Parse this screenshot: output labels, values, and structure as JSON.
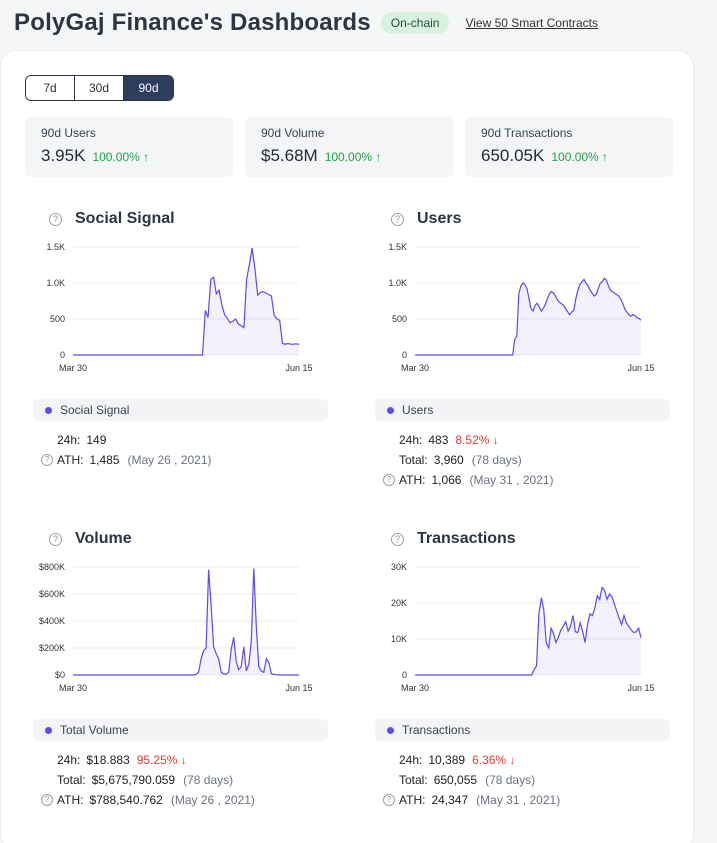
{
  "header": {
    "title": "PolyGaj Finance's Dashboards",
    "badge": "On-chain",
    "link": "View 50 Smart Contracts"
  },
  "tabs": [
    {
      "label": "7d",
      "active": false
    },
    {
      "label": "30d",
      "active": false
    },
    {
      "label": "90d",
      "active": true
    }
  ],
  "stats": [
    {
      "label": "90d Users",
      "value": "3.95K",
      "change": "100.00%"
    },
    {
      "label": "90d Volume",
      "value": "$5.68M",
      "change": "100.00%"
    },
    {
      "label": "90d Transactions",
      "value": "650.05K",
      "change": "100.00%"
    }
  ],
  "colors": {
    "series": "#5b4ce6",
    "up": "#21a446",
    "down": "#e53935",
    "active_tab": "#2c3e5c"
  },
  "icons": {
    "help": "question-circle-icon",
    "up": "arrow-up-icon",
    "down": "arrow-down-icon"
  },
  "cards": {
    "social": {
      "title": "Social Signal",
      "legend": "Social Signal",
      "h24_label": "24h:",
      "h24": "149",
      "ath_label": "ATH:",
      "ath": "1,485",
      "ath_date": "(May 26 , 2021)"
    },
    "users": {
      "title": "Users",
      "legend": "Users",
      "h24_label": "24h:",
      "h24": "483",
      "h24_change": "8.52%",
      "total_label": "Total:",
      "total": "3,960",
      "total_days": "(78 days)",
      "ath_label": "ATH:",
      "ath": "1,066",
      "ath_date": "(May 31 , 2021)"
    },
    "volume": {
      "title": "Volume",
      "legend": "Total Volume",
      "h24_label": "24h:",
      "h24": "$18.883",
      "h24_change": "95.25%",
      "total_label": "Total:",
      "total": "$5,675,790.059",
      "total_days": "(78 days)",
      "ath_label": "ATH:",
      "ath": "$788,540.762",
      "ath_date": "(May 26 , 2021)"
    },
    "transactions": {
      "title": "Transactions",
      "legend": "Transactions",
      "h24_label": "24h:",
      "h24": "10,389",
      "h24_change": "6.36%",
      "total_label": "Total:",
      "total": "650,055",
      "total_days": "(78 days)",
      "ath_label": "ATH:",
      "ath": "24,347",
      "ath_date": "(May 31 , 2021)"
    }
  },
  "chart_data": [
    {
      "type": "area",
      "key": "social",
      "x_labels": [
        "Mar 30",
        "Jun 15"
      ],
      "y_ticks": [
        "0",
        "500",
        "1.0K",
        "1.5K"
      ],
      "ylim": [
        0,
        1500
      ],
      "values": [
        0,
        0,
        0,
        0,
        0,
        0,
        0,
        0,
        0,
        0,
        0,
        0,
        0,
        0,
        0,
        0,
        0,
        0,
        0,
        0,
        0,
        0,
        0,
        0,
        0,
        0,
        0,
        0,
        0,
        0,
        0,
        0,
        0,
        0,
        0,
        0,
        0,
        0,
        0,
        0,
        0,
        0,
        0,
        0,
        0,
        0,
        0,
        0,
        620,
        520,
        1050,
        1080,
        850,
        900,
        700,
        560,
        510,
        450,
        470,
        500,
        430,
        410,
        380,
        1050,
        1260,
        1485,
        1200,
        830,
        870,
        880,
        860,
        840,
        820,
        550,
        500,
        480,
        160,
        150,
        160,
        150,
        150,
        155,
        149
      ]
    },
    {
      "type": "area",
      "key": "users",
      "x_labels": [
        "Mar 30",
        "Jun 15"
      ],
      "y_ticks": [
        "0",
        "500",
        "1.0K",
        "1.5K"
      ],
      "ylim": [
        0,
        1500
      ],
      "values": [
        0,
        0,
        0,
        0,
        0,
        0,
        0,
        0,
        0,
        0,
        0,
        0,
        0,
        0,
        0,
        0,
        0,
        0,
        0,
        0,
        0,
        0,
        0,
        0,
        0,
        0,
        0,
        0,
        0,
        0,
        0,
        0,
        0,
        0,
        0,
        0,
        0,
        0,
        0,
        0,
        0,
        0,
        0,
        0,
        0,
        0,
        0,
        0,
        0,
        220,
        260,
        850,
        960,
        1000,
        980,
        920,
        780,
        640,
        610,
        690,
        720,
        670,
        610,
        650,
        700,
        780,
        850,
        880,
        860,
        820,
        760,
        730,
        710,
        690,
        640,
        600,
        560,
        600,
        620,
        780,
        900,
        980,
        1020,
        1050,
        1000,
        960,
        900,
        860,
        820,
        840,
        920,
        1000,
        1020,
        1066,
        1040,
        960,
        900,
        880,
        860,
        840,
        820,
        780,
        720,
        640,
        600,
        560,
        540,
        560,
        550,
        520,
        510,
        483
      ]
    },
    {
      "type": "area",
      "key": "volume",
      "x_labels": [
        "Mar 30",
        "Jun 15"
      ],
      "y_ticks": [
        "$0",
        "$200K",
        "$400K",
        "$600K",
        "$800K"
      ],
      "ylim": [
        0,
        800000
      ],
      "values": [
        0,
        0,
        0,
        0,
        0,
        0,
        0,
        0,
        0,
        0,
        0,
        0,
        0,
        0,
        0,
        0,
        0,
        0,
        0,
        0,
        0,
        0,
        0,
        0,
        0,
        0,
        0,
        0,
        0,
        0,
        0,
        0,
        0,
        0,
        0,
        0,
        0,
        0,
        0,
        0,
        0,
        0,
        0,
        0,
        0,
        0,
        0,
        0,
        0,
        5000,
        20000,
        120000,
        180000,
        200000,
        780000,
        520000,
        210000,
        160000,
        120000,
        20000,
        8000,
        5000,
        20000,
        190000,
        280000,
        100000,
        40000,
        60000,
        210000,
        30000,
        80000,
        250000,
        788540,
        360000,
        60000,
        30000,
        20000,
        120000,
        90000,
        10000,
        5000,
        2000,
        0,
        0,
        0,
        0,
        1000,
        0,
        0,
        0,
        19
      ]
    },
    {
      "type": "area",
      "key": "transactions",
      "x_labels": [
        "Mar 30",
        "Jun 15"
      ],
      "y_ticks": [
        "0",
        "10K",
        "20K",
        "30K"
      ],
      "ylim": [
        0,
        30000
      ],
      "values": [
        0,
        0,
        0,
        0,
        0,
        0,
        0,
        0,
        0,
        0,
        0,
        0,
        0,
        0,
        0,
        0,
        0,
        0,
        0,
        0,
        0,
        0,
        0,
        0,
        0,
        0,
        0,
        0,
        0,
        0,
        0,
        0,
        0,
        0,
        0,
        0,
        0,
        0,
        0,
        0,
        0,
        0,
        0,
        0,
        0,
        0,
        0,
        0,
        0,
        1500,
        2500,
        17000,
        21500,
        18000,
        9000,
        7500,
        13000,
        11500,
        9000,
        10500,
        12500,
        13500,
        14800,
        12200,
        13500,
        16500,
        12000,
        11800,
        14500,
        12000,
        9000,
        14000,
        17000,
        16500,
        18500,
        22000,
        21000,
        24347,
        23500,
        21000,
        22500,
        21800,
        19800,
        17800,
        15800,
        14000,
        16500,
        14500,
        13500,
        12500,
        11800,
        12000,
        13000,
        10389
      ]
    }
  ]
}
